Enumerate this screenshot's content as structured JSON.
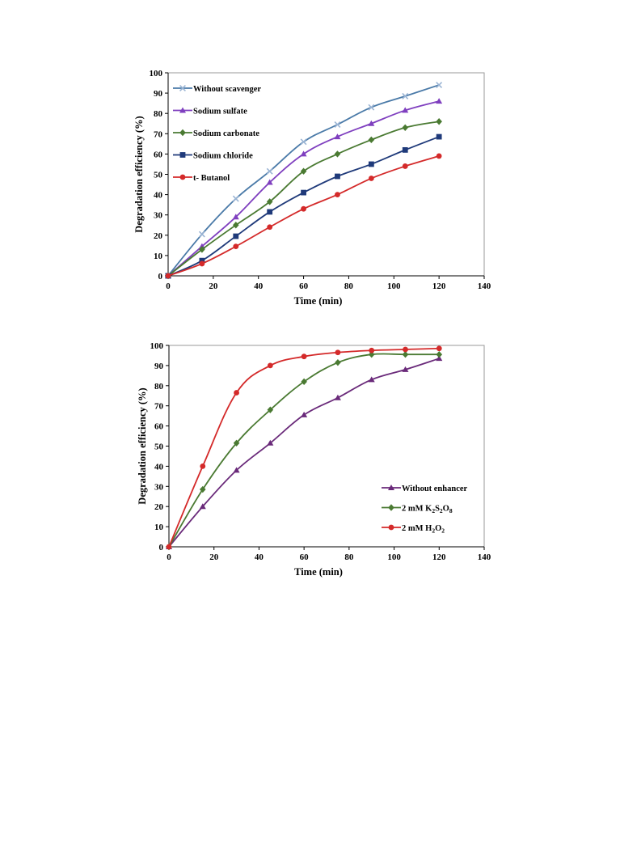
{
  "chart_data": [
    {
      "type": "line",
      "title": "",
      "xlabel": "Time (min)",
      "ylabel": "Degradation efficiency (%)",
      "xlim": [
        0,
        140
      ],
      "ylim": [
        0,
        100
      ],
      "xticks": [
        0,
        20,
        40,
        60,
        80,
        100,
        120,
        140
      ],
      "yticks": [
        0,
        10,
        20,
        30,
        40,
        50,
        60,
        70,
        80,
        90,
        100
      ],
      "grid": false,
      "legend_position": "top-left",
      "x": [
        0,
        15,
        30,
        45,
        60,
        75,
        90,
        105,
        120
      ],
      "series": [
        {
          "name": "Without scavenger",
          "color": "#4a7aa8",
          "marker": "x",
          "values": [
            0,
            20.5,
            38,
            51.5,
            66,
            74.5,
            83,
            88.5,
            94
          ]
        },
        {
          "name": "Sodium sulfate",
          "color": "#7f3fbf",
          "marker": "triangle",
          "values": [
            0,
            14.5,
            29,
            46,
            60,
            68.5,
            75,
            81.5,
            86
          ]
        },
        {
          "name": "Sodium carbonate",
          "color": "#4a7a32",
          "marker": "diamond",
          "values": [
            0,
            13,
            25,
            36.5,
            51.5,
            60,
            67,
            73,
            76
          ]
        },
        {
          "name": "Sodium chloride",
          "color": "#1f3a7a",
          "marker": "square",
          "values": [
            0,
            7.5,
            19.5,
            31.5,
            41,
            49,
            55,
            62,
            68.5
          ]
        },
        {
          "name": "t- Butanol",
          "color": "#d42a2a",
          "marker": "circle",
          "values": [
            0,
            6,
            14.5,
            24,
            33,
            40,
            48,
            54,
            59
          ]
        }
      ]
    },
    {
      "type": "line",
      "title": "",
      "xlabel": "Time (min)",
      "ylabel": "Degradation efficiency (%)",
      "xlim": [
        0,
        140
      ],
      "ylim": [
        0,
        100
      ],
      "xticks": [
        0,
        20,
        40,
        60,
        80,
        100,
        120,
        140
      ],
      "yticks": [
        0,
        10,
        20,
        30,
        40,
        50,
        60,
        70,
        80,
        90,
        100
      ],
      "grid": false,
      "legend_position": "bottom-right",
      "x": [
        0,
        15,
        30,
        45,
        60,
        75,
        90,
        105,
        120
      ],
      "series": [
        {
          "name": "Without enhancer",
          "name_parts": [
            [
              "Without enhancer",
              ""
            ]
          ],
          "color": "#6a2a7a",
          "marker": "triangle",
          "values": [
            0,
            20,
            38,
            51.5,
            65.5,
            74,
            83,
            88,
            93.5
          ]
        },
        {
          "name": "2 mM K2S2O8",
          "name_parts": [
            [
              "2 mM K",
              ""
            ],
            [
              "2",
              "sub"
            ],
            [
              "S",
              ""
            ],
            [
              "2",
              "sub"
            ],
            [
              "O",
              ""
            ],
            [
              "8",
              "sub"
            ]
          ],
          "color": "#4a7a32",
          "marker": "diamond",
          "values": [
            0,
            28.5,
            51.5,
            68,
            82,
            91.5,
            95.5,
            95.5,
            95.5
          ]
        },
        {
          "name": "2 mM H2O2",
          "name_parts": [
            [
              "2 mM H",
              ""
            ],
            [
              "2",
              "sub"
            ],
            [
              "O",
              ""
            ],
            [
              "2",
              "sub"
            ]
          ],
          "color": "#d42a2a",
          "marker": "circle",
          "values": [
            0,
            40,
            76.5,
            90,
            94.5,
            96.5,
            97.5,
            98,
            98.5
          ]
        }
      ]
    }
  ]
}
